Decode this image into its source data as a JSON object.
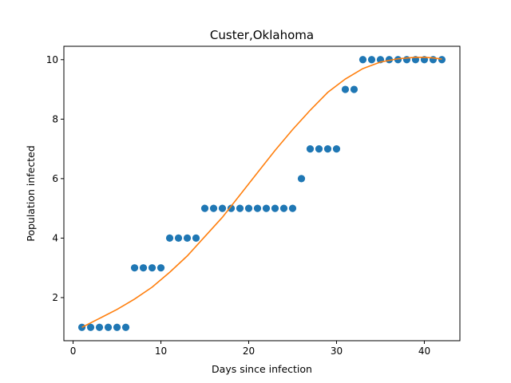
{
  "chart_data": {
    "type": "scatter",
    "title": "Custer,Oklahoma",
    "xlabel": "Days since infection",
    "ylabel": "Population infected",
    "xlim": [
      -1.05,
      44.05
    ],
    "ylim": [
      0.55,
      10.45
    ],
    "xticks": [
      0,
      10,
      20,
      30,
      40
    ],
    "yticks": [
      2,
      4,
      6,
      8,
      10
    ],
    "grid": false,
    "series": [
      {
        "kind": "scatter",
        "color": "#1f77b4",
        "x": [
          1,
          2,
          3,
          4,
          5,
          6,
          7,
          8,
          9,
          10,
          11,
          12,
          13,
          14,
          15,
          16,
          17,
          18,
          19,
          20,
          21,
          22,
          23,
          24,
          25,
          26,
          27,
          28,
          29,
          30,
          31,
          32,
          33,
          34,
          35,
          36,
          37,
          38,
          39,
          40,
          41,
          42
        ],
        "y": [
          1,
          1,
          1,
          1,
          1,
          1,
          3,
          3,
          3,
          3,
          4,
          4,
          4,
          4,
          5,
          5,
          5,
          5,
          5,
          5,
          5,
          5,
          5,
          5,
          5,
          6,
          7,
          7,
          7,
          7,
          9,
          9,
          10,
          10,
          10,
          10,
          10,
          10,
          10,
          10,
          10,
          10
        ]
      },
      {
        "kind": "line",
        "color": "#ff7f0e",
        "x": [
          1,
          3,
          5,
          7,
          9,
          11,
          13,
          15,
          17,
          19,
          21,
          23,
          25,
          27,
          29,
          31,
          33,
          35,
          37,
          39,
          40,
          41,
          42
        ],
        "y": [
          1.0,
          1.3,
          1.6,
          1.95,
          2.35,
          2.85,
          3.4,
          4.05,
          4.7,
          5.45,
          6.2,
          6.95,
          7.65,
          8.3,
          8.9,
          9.35,
          9.7,
          9.92,
          10.03,
          10.08,
          10.08,
          10.06,
          10.02
        ]
      }
    ]
  }
}
